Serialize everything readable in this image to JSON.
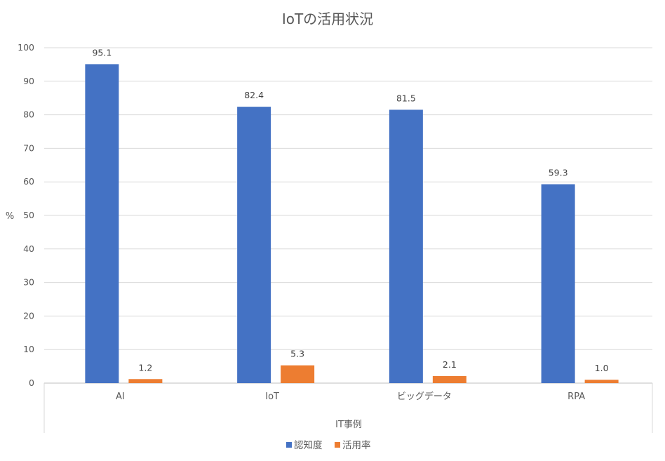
{
  "chart_data": {
    "type": "bar",
    "title": "IoTの活用状況",
    "xlabel": "IT事例",
    "ylabel": "%",
    "ylim": [
      0,
      100
    ],
    "yticks": [
      0,
      10,
      20,
      30,
      40,
      50,
      60,
      70,
      80,
      90,
      100
    ],
    "grid": true,
    "legend_position": "bottom",
    "categories": [
      "AI",
      "IoT",
      "ビッグデータ",
      "RPA"
    ],
    "series": [
      {
        "name": "認知度",
        "color": "#4472C4",
        "values": [
          95.1,
          82.4,
          81.5,
          59.3
        ],
        "labels": [
          "95.1",
          "82.4",
          "81.5",
          "59.3"
        ]
      },
      {
        "name": "活用率",
        "color": "#ED7D31",
        "values": [
          1.2,
          5.3,
          2.1,
          1.0
        ],
        "labels": [
          "1.2",
          "5.3",
          "2.1",
          "1.0"
        ]
      }
    ]
  }
}
